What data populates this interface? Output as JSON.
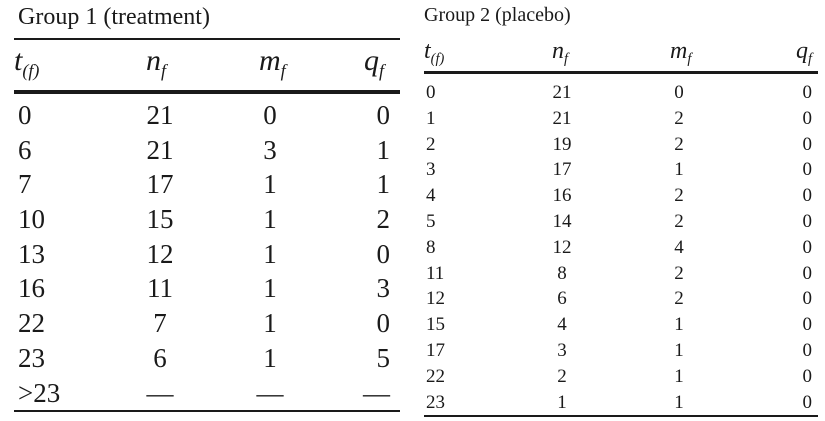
{
  "group1": {
    "title": "Group 1 (treatment)",
    "headers": {
      "t": "t",
      "t_sub": "(f)",
      "n": "n",
      "n_sub": "f",
      "m": "m",
      "m_sub": "f",
      "q": "q",
      "q_sub": "f"
    },
    "rows": [
      {
        "t": "0",
        "n": "21",
        "m": "0",
        "q": "0"
      },
      {
        "t": "6",
        "n": "21",
        "m": "3",
        "q": "1"
      },
      {
        "t": "7",
        "n": "17",
        "m": "1",
        "q": "1"
      },
      {
        "t": "10",
        "n": "15",
        "m": "1",
        "q": "2"
      },
      {
        "t": "13",
        "n": "12",
        "m": "1",
        "q": "0"
      },
      {
        "t": "16",
        "n": "11",
        "m": "1",
        "q": "3"
      },
      {
        "t": "22",
        "n": "7",
        "m": "1",
        "q": "0"
      },
      {
        "t": "23",
        "n": "6",
        "m": "1",
        "q": "5"
      },
      {
        "t": ">23",
        "n": "—",
        "m": "—",
        "q": "—"
      }
    ]
  },
  "group2": {
    "title": "Group 2 (placebo)",
    "headers": {
      "t": "t",
      "t_sub": "(f)",
      "n": "n",
      "n_sub": "f",
      "m": "m",
      "m_sub": "f",
      "q": "q",
      "q_sub": "f"
    },
    "rows": [
      {
        "t": "0",
        "n": "21",
        "m": "0",
        "q": "0"
      },
      {
        "t": "1",
        "n": "21",
        "m": "2",
        "q": "0"
      },
      {
        "t": "2",
        "n": "19",
        "m": "2",
        "q": "0"
      },
      {
        "t": "3",
        "n": "17",
        "m": "1",
        "q": "0"
      },
      {
        "t": "4",
        "n": "16",
        "m": "2",
        "q": "0"
      },
      {
        "t": "5",
        "n": "14",
        "m": "2",
        "q": "0"
      },
      {
        "t": "8",
        "n": "12",
        "m": "4",
        "q": "0"
      },
      {
        "t": "11",
        "n": "8",
        "m": "2",
        "q": "0"
      },
      {
        "t": "12",
        "n": "6",
        "m": "2",
        "q": "0"
      },
      {
        "t": "15",
        "n": "4",
        "m": "1",
        "q": "0"
      },
      {
        "t": "17",
        "n": "3",
        "m": "1",
        "q": "0"
      },
      {
        "t": "22",
        "n": "2",
        "m": "1",
        "q": "0"
      },
      {
        "t": "23",
        "n": "1",
        "m": "1",
        "q": "0"
      }
    ]
  }
}
